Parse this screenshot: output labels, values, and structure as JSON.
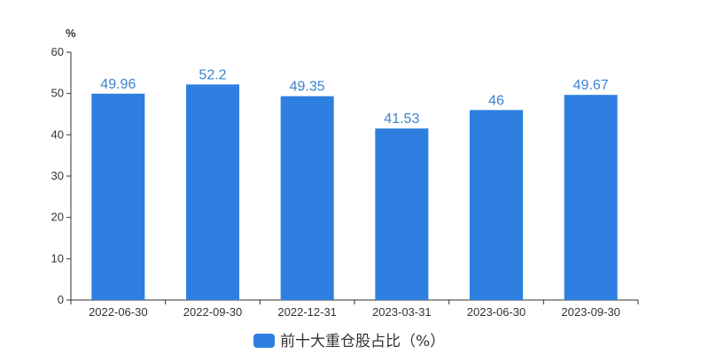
{
  "chart_data": {
    "type": "bar",
    "ylabel": "%",
    "ylim": [
      0,
      60
    ],
    "yticks": [
      0,
      10,
      20,
      30,
      40,
      50,
      60
    ],
    "categories": [
      "2022-06-30",
      "2022-09-30",
      "2022-12-31",
      "2023-03-31",
      "2023-06-30",
      "2023-09-30"
    ],
    "series": [
      {
        "name": "前十大重仓股占比（%）",
        "values": [
          49.96,
          52.2,
          49.35,
          41.53,
          46,
          49.67
        ],
        "data_labels": [
          "49.96",
          "52.2",
          "49.35",
          "41.53",
          "46",
          "49.67"
        ]
      }
    ],
    "grid": false,
    "legend": "bottom-center",
    "colors": {
      "bar": "#2e7fdf",
      "label": "#3b82d0",
      "axis": "#333333"
    }
  }
}
